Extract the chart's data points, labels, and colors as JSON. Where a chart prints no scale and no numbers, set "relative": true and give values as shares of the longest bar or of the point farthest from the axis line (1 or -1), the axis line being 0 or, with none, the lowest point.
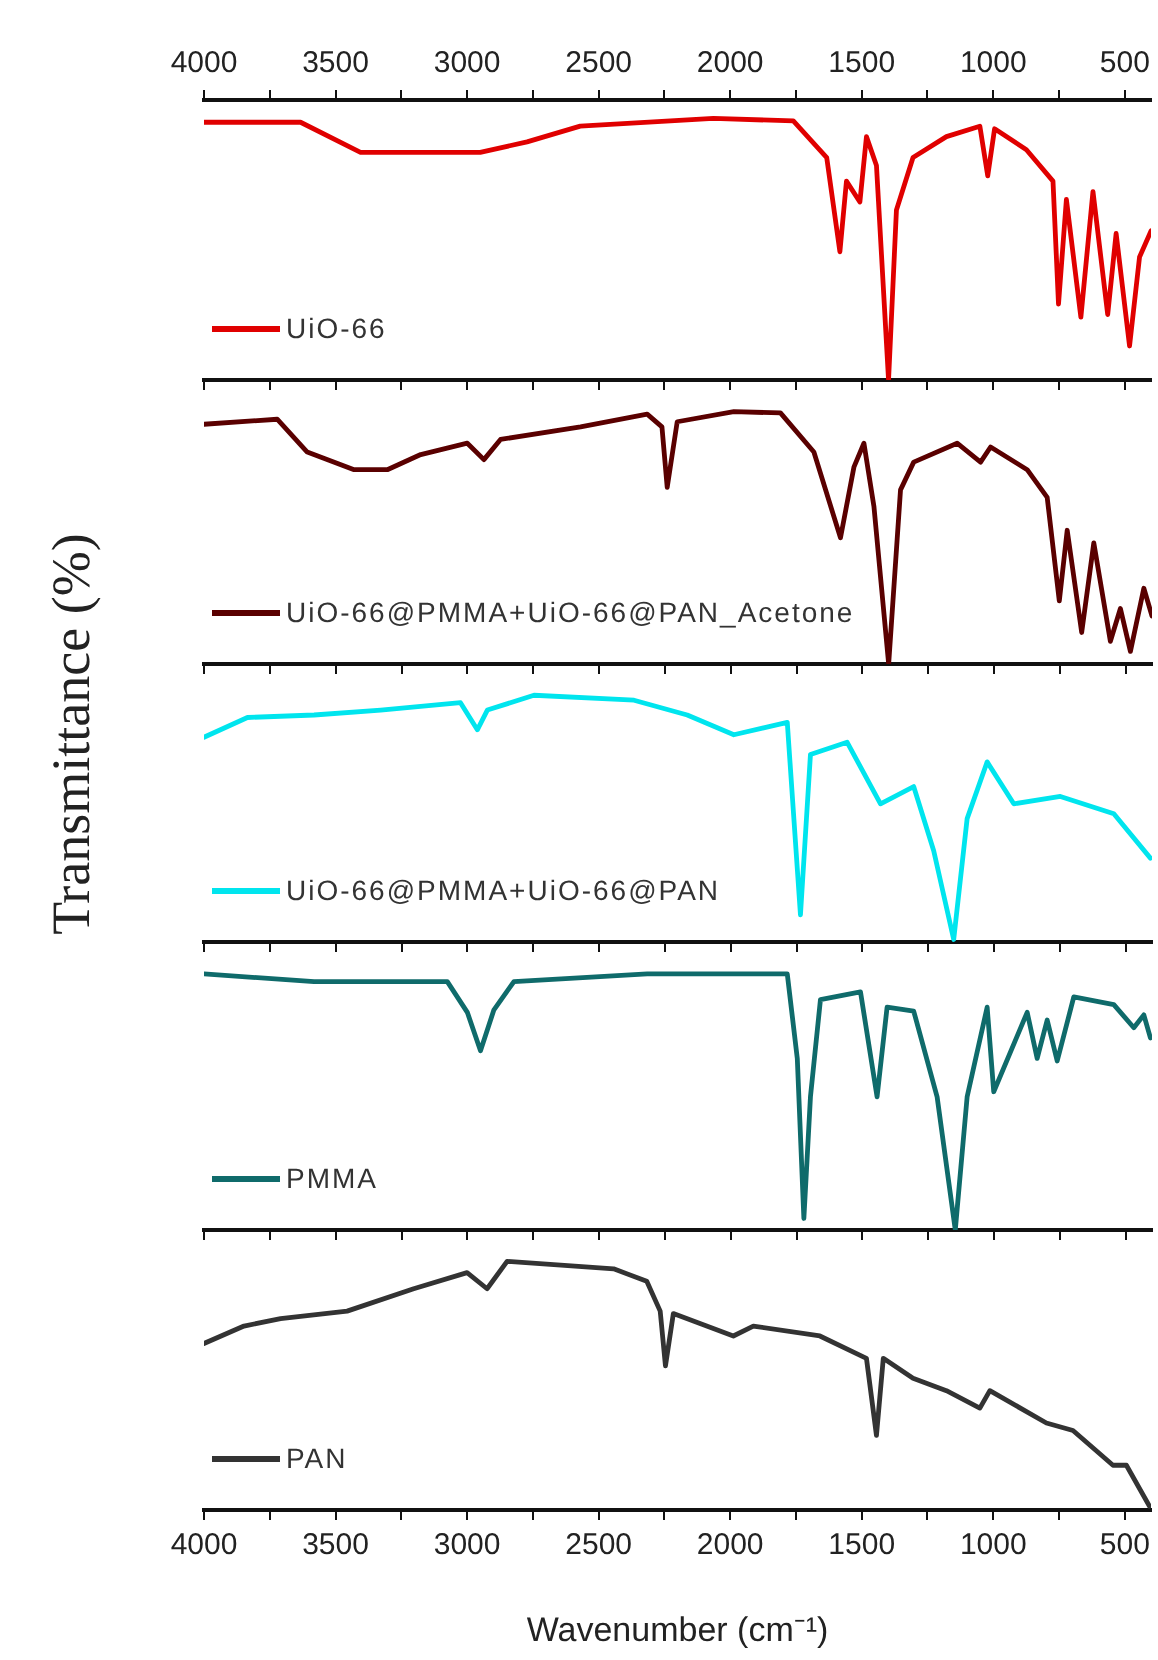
{
  "chart_data": [
    {
      "type": "line",
      "relative": true,
      "legend": "bottom left",
      "xlim": [
        4000,
        400
      ],
      "xticks": [
        4000,
        {
          "value": 3750,
          "label": null
        },
        3500,
        {
          "value": 3250,
          "label": null
        },
        3000,
        {
          "value": 2750,
          "label": null
        },
        2500,
        {
          "value": 2250,
          "label": null
        },
        2000,
        {
          "value": 1750,
          "label": null
        },
        1500,
        {
          "value": 1250,
          "label": null
        },
        1000,
        {
          "value": 750,
          "label": null
        },
        500
      ],
      "x": [
        4000,
        3633,
        3405,
        2950,
        2772,
        2570,
        2064,
        1760,
        1633,
        1583,
        1558,
        1507,
        1482,
        1444,
        1398,
        1368,
        1305,
        1178,
        1051,
        1021,
        995,
        874,
        773,
        752,
        722,
        667,
        621,
        565,
        533,
        482,
        444,
        400
      ],
      "series": [
        {
          "name": "UiO-66",
          "color": "#e00000",
          "values": [
            0.985,
            0.985,
            0.87,
            0.87,
            0.91,
            0.97,
            1.0,
            0.99,
            0.85,
            0.49,
            0.76,
            0.68,
            0.93,
            0.82,
            0,
            0.65,
            0.85,
            0.93,
            0.97,
            0.78,
            0.96,
            0.88,
            0.76,
            0.29,
            0.69,
            0.24,
            0.72,
            0.25,
            0.56,
            0.13,
            0.47,
            0.57
          ]
        }
      ]
    },
    {
      "type": "line",
      "relative": true,
      "legend": "bottom left",
      "tick_labels": false,
      "xlim": [
        4000,
        400
      ],
      "xticks": [
        4000,
        {
          "value": 3750,
          "label": null
        },
        3500,
        {
          "value": 3250,
          "label": null
        },
        3000,
        {
          "value": 2750,
          "label": null
        },
        2500,
        {
          "value": 2250,
          "label": null
        },
        2000,
        {
          "value": 1750,
          "label": null
        },
        1500,
        {
          "value": 1250,
          "label": null
        },
        1000,
        {
          "value": 750,
          "label": null
        },
        500
      ],
      "x": [
        4000,
        3722,
        3608,
        3430,
        3304,
        3177,
        3000,
        2937,
        2874,
        2570,
        2317,
        2261,
        2241,
        2203,
        1988,
        1811,
        1684,
        1583,
        1532,
        1494,
        1456,
        1400,
        1355,
        1305,
        1140,
        1051,
        1013,
        874,
        798,
        752,
        722,
        667,
        621,
        558,
        520,
        482,
        431,
        400
      ],
      "series": [
        {
          "name": "UiO-66@PMMA+UiO-66@PAN_Acetone",
          "color": "#5a0000",
          "values": [
            0.95,
            0.97,
            0.84,
            0.77,
            0.77,
            0.83,
            0.875,
            0.81,
            0.89,
            0.94,
            0.99,
            0.94,
            0.7,
            0.96,
            1.0,
            0.995,
            0.84,
            0.5,
            0.78,
            0.875,
            0.625,
            0,
            0.69,
            0.8,
            0.875,
            0.8,
            0.86,
            0.77,
            0.66,
            0.25,
            0.53,
            0.125,
            0.48,
            0.09,
            0.22,
            0.05,
            0.3,
            0.19
          ]
        }
      ]
    },
    {
      "type": "line",
      "relative": true,
      "legend": "bottom left",
      "tick_labels": false,
      "ylabel": "Transmittance (%)",
      "xlim": [
        4000,
        400
      ],
      "xticks": [
        4000,
        {
          "value": 3750,
          "label": null
        },
        3500,
        {
          "value": 3250,
          "label": null
        },
        3000,
        {
          "value": 2750,
          "label": null
        },
        2500,
        {
          "value": 2250,
          "label": null
        },
        2000,
        {
          "value": 1750,
          "label": null
        },
        1500,
        {
          "value": 1250,
          "label": null
        },
        1000,
        {
          "value": 750,
          "label": null
        },
        500
      ],
      "x": [
        4000,
        3835,
        3582,
        3329,
        3026,
        2962,
        2924,
        2747,
        2367,
        2165,
        1988,
        1785,
        1735,
        1697,
        1558,
        1431,
        1305,
        1229,
        1153,
        1102,
        1026,
        925,
        748,
        545,
        406
      ],
      "series": [
        {
          "name": "UiO-66@PMMA+UiO-66@PAN",
          "color": "#00e5ee",
          "values": [
            0.83,
            0.91,
            0.92,
            0.94,
            0.97,
            0.86,
            0.94,
            1.0,
            0.98,
            0.92,
            0.84,
            0.89,
            0.11,
            0.76,
            0.81,
            0.56,
            0.63,
            0.37,
            0.01,
            0.5,
            0.73,
            0.56,
            0.59,
            0.52,
            0.34
          ]
        }
      ]
    },
    {
      "type": "line",
      "relative": true,
      "legend": "bottom left",
      "tick_labels": false,
      "xlim": [
        4000,
        400
      ],
      "xticks": [
        4000,
        {
          "value": 3750,
          "label": null
        },
        3500,
        {
          "value": 3250,
          "label": null
        },
        3000,
        {
          "value": 2750,
          "label": null
        },
        2500,
        {
          "value": 2250,
          "label": null
        },
        2000,
        {
          "value": 1750,
          "label": null
        },
        1500,
        {
          "value": 1250,
          "label": null
        },
        1000,
        {
          "value": 750,
          "label": null
        },
        500
      ],
      "x": [
        4000,
        3582,
        3076,
        3000,
        2950,
        2899,
        2823,
        2317,
        1785,
        1747,
        1722,
        1697,
        1659,
        1507,
        1444,
        1406,
        1305,
        1216,
        1147,
        1102,
        1026,
        1001,
        874,
        836,
        798,
        760,
        697,
        545,
        469,
        431,
        406
      ],
      "series": [
        {
          "name": "PMMA",
          "color": "#0f6b6b",
          "values": [
            1.0,
            0.97,
            0.97,
            0.85,
            0.7,
            0.86,
            0.97,
            1.0,
            1.0,
            0.67,
            0.045,
            0.52,
            0.9,
            0.93,
            0.52,
            0.87,
            0.855,
            0.52,
            0,
            0.52,
            0.87,
            0.54,
            0.85,
            0.67,
            0.82,
            0.66,
            0.91,
            0.88,
            0.79,
            0.84,
            0.75
          ]
        }
      ]
    },
    {
      "type": "line",
      "relative": true,
      "legend": "bottom left",
      "xlabel": "Wavenumber (cm⁻¹)",
      "xlim": [
        4000,
        400
      ],
      "xticks": [
        4000,
        {
          "value": 3750,
          "label": null
        },
        3500,
        {
          "value": 3250,
          "label": null
        },
        3000,
        {
          "value": 2750,
          "label": null
        },
        2500,
        {
          "value": 2250,
          "label": null
        },
        2000,
        {
          "value": 1750,
          "label": null
        },
        1500,
        {
          "value": 1250,
          "label": null
        },
        1000,
        {
          "value": 750,
          "label": null
        },
        500
      ],
      "x": [
        4000,
        3848,
        3709,
        3456,
        3203,
        3000,
        2924,
        2848,
        2443,
        2317,
        2266,
        2246,
        2216,
        2064,
        1988,
        1912,
        1659,
        1482,
        1444,
        1418,
        1305,
        1178,
        1051,
        1013,
        798,
        697,
        545,
        494,
        406
      ],
      "series": [
        {
          "name": "PAN",
          "color": "#333333",
          "values": [
            0.67,
            0.74,
            0.77,
            0.8,
            0.89,
            0.955,
            0.89,
            1.0,
            0.97,
            0.92,
            0.8,
            0.58,
            0.79,
            0.73,
            0.7,
            0.74,
            0.7,
            0.61,
            0.3,
            0.61,
            0.53,
            0.48,
            0.41,
            0.48,
            0.35,
            0.32,
            0.18,
            0.18,
            0.015
          ]
        }
      ]
    }
  ]
}
